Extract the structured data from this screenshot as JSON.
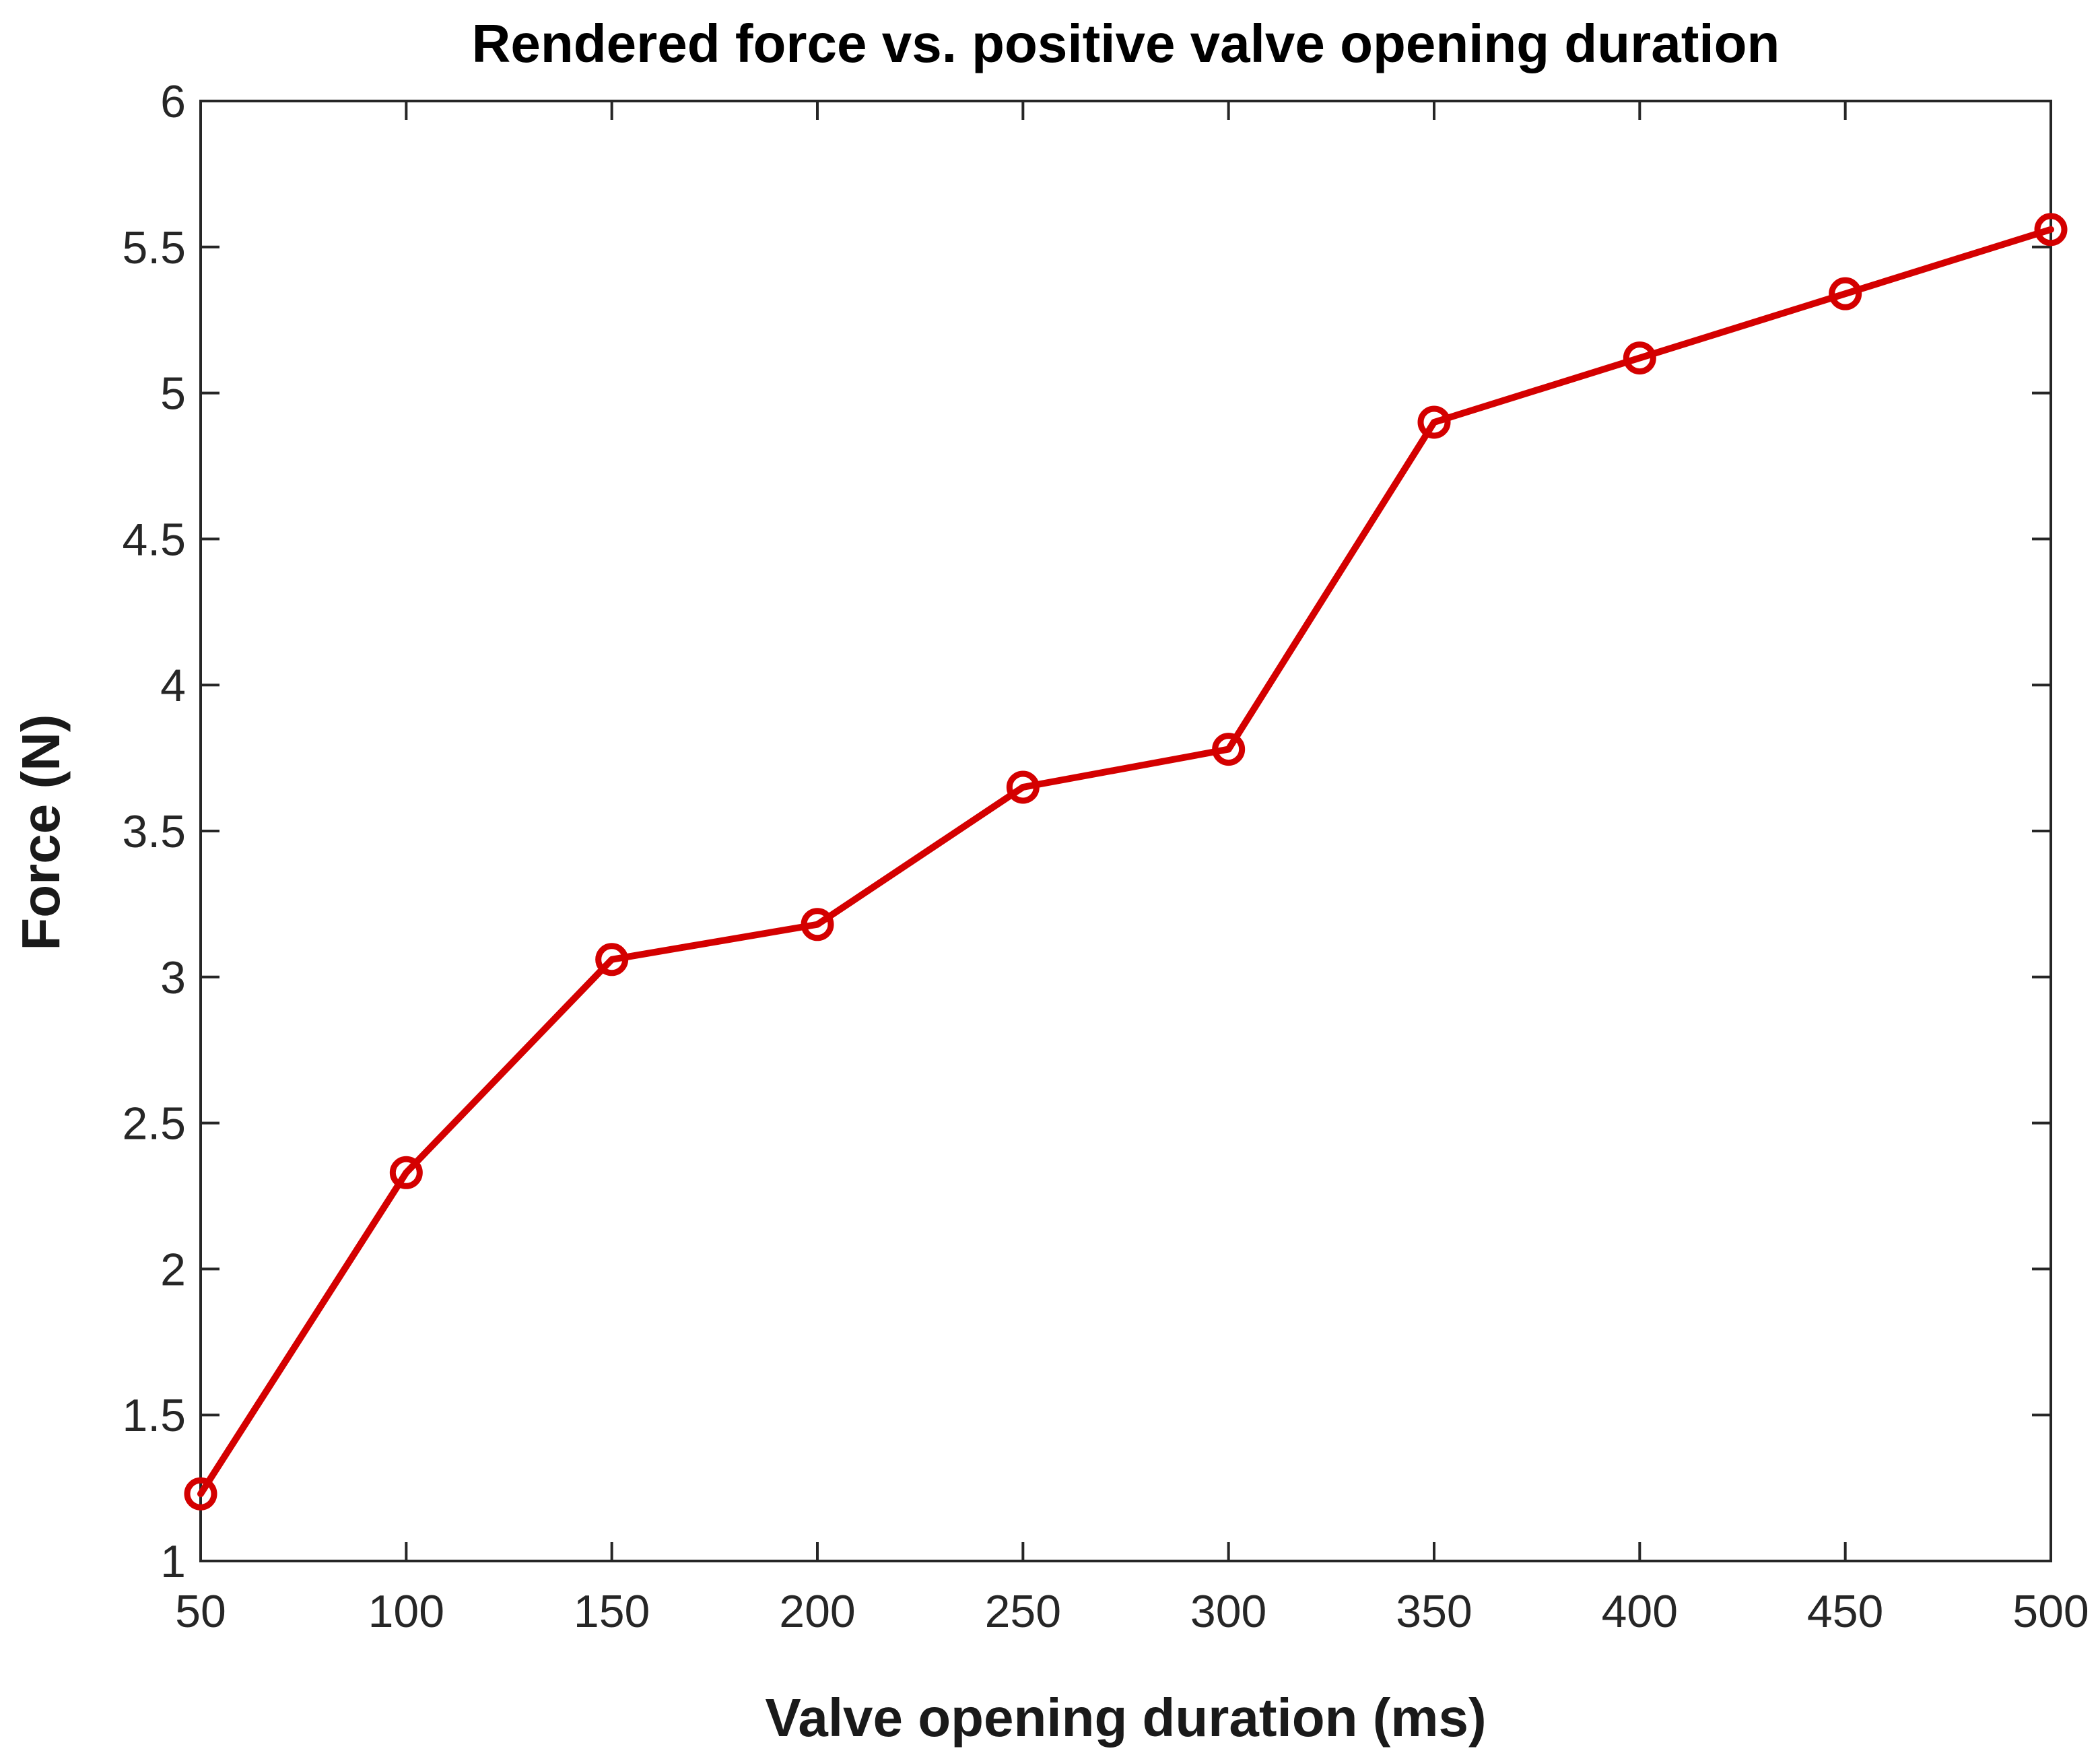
{
  "chart_data": {
    "type": "line",
    "title": "Rendered force vs. positive valve opening duration",
    "xlabel": "Valve opening duration (ms)",
    "ylabel": "Force (N)",
    "xlim": [
      50,
      500
    ],
    "ylim": [
      1,
      6
    ],
    "grid": false,
    "x_ticks": [
      50,
      100,
      150,
      200,
      250,
      300,
      350,
      400,
      450,
      500
    ],
    "x_tick_labels": [
      "50",
      "100",
      "150",
      "200",
      "250",
      "300",
      "350",
      "400",
      "450",
      "500"
    ],
    "y_ticks": [
      1,
      1.5,
      2,
      2.5,
      3,
      3.5,
      4,
      4.5,
      5,
      5.5,
      6
    ],
    "y_tick_labels": [
      "1",
      "1.5",
      "2",
      "2.5",
      "3",
      "3.5",
      "4",
      "4.5",
      "5",
      "5.5",
      "6"
    ],
    "series": [
      {
        "marker": "circle",
        "color": "#d40000",
        "x": [
          50,
          100,
          150,
          200,
          250,
          300,
          350,
          400,
          450,
          500
        ],
        "y": [
          1.23,
          2.33,
          3.06,
          3.18,
          3.65,
          3.78,
          4.9,
          5.12,
          5.34,
          5.56
        ]
      }
    ]
  }
}
